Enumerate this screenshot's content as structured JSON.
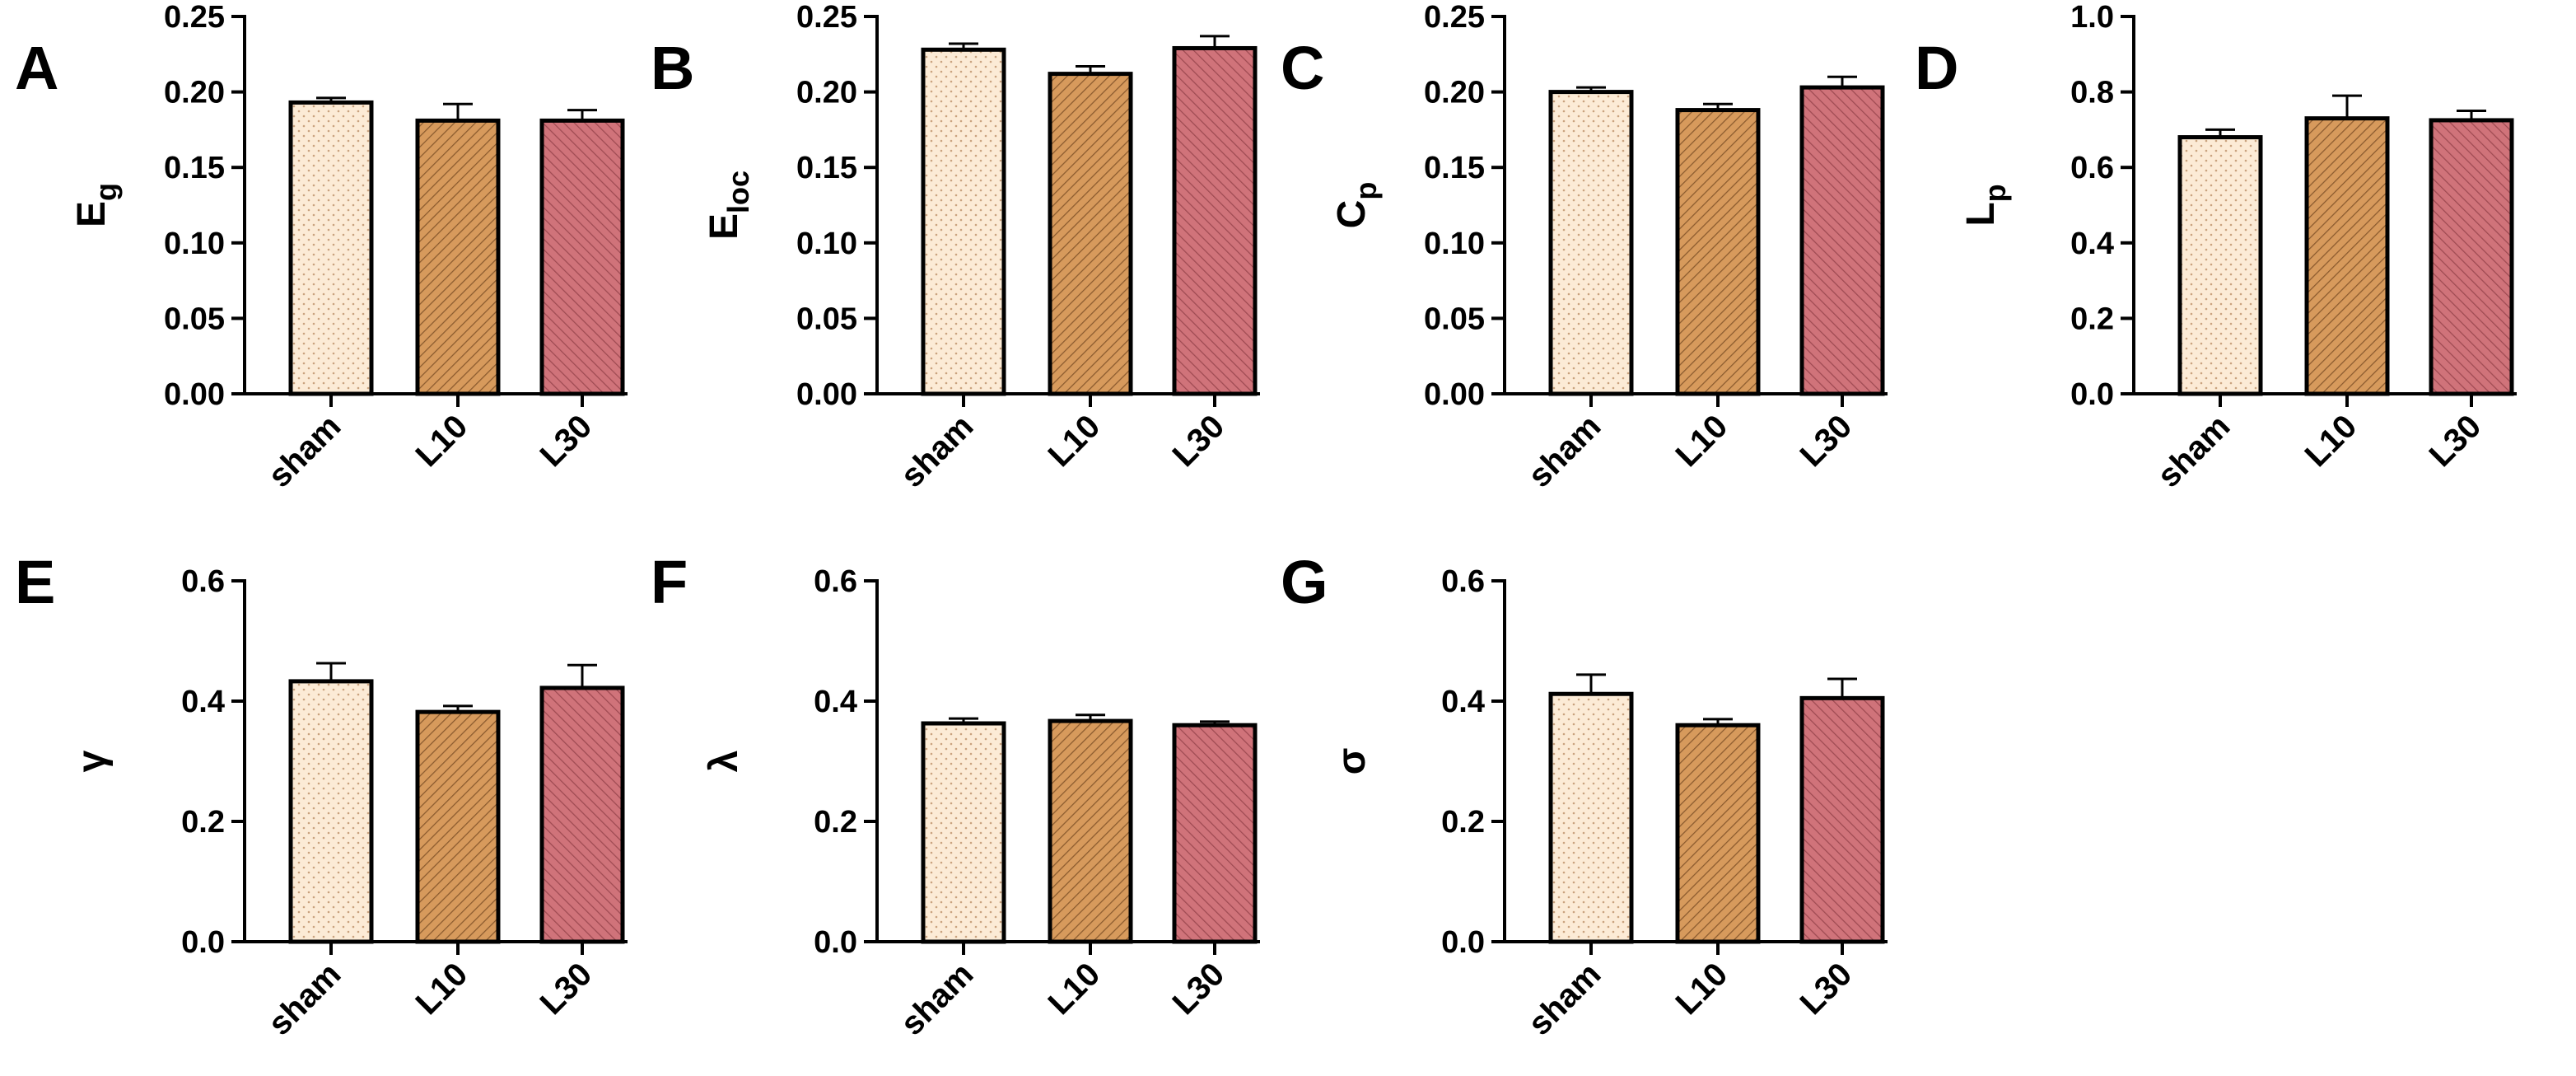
{
  "colors": {
    "sham": "#FCEBD6",
    "L10": "#D79A5C",
    "L30": "#D0737A",
    "axis": "#000000"
  },
  "chart_data": [
    {
      "panel": "A",
      "type": "bar",
      "ylabel": "E",
      "ylabel_sub": "g",
      "categories": [
        "sham",
        "L10",
        "L30"
      ],
      "values": [
        0.193,
        0.181,
        0.181
      ],
      "errors": [
        0.003,
        0.011,
        0.007
      ],
      "ylim": [
        0,
        0.25
      ],
      "yticks": [
        "0.00",
        "0.05",
        "0.10",
        "0.15",
        "0.20",
        "0.25"
      ],
      "grid": false
    },
    {
      "panel": "B",
      "type": "bar",
      "ylabel": "E",
      "ylabel_sub": "loc",
      "categories": [
        "sham",
        "L10",
        "L30"
      ],
      "values": [
        0.228,
        0.212,
        0.229
      ],
      "errors": [
        0.004,
        0.005,
        0.008
      ],
      "ylim": [
        0,
        0.25
      ],
      "yticks": [
        "0.00",
        "0.05",
        "0.10",
        "0.15",
        "0.20",
        "0.25"
      ],
      "grid": false
    },
    {
      "panel": "C",
      "type": "bar",
      "ylabel": "C",
      "ylabel_sub": "p",
      "categories": [
        "sham",
        "L10",
        "L30"
      ],
      "values": [
        0.2,
        0.188,
        0.203
      ],
      "errors": [
        0.003,
        0.004,
        0.007
      ],
      "ylim": [
        0,
        0.25
      ],
      "yticks": [
        "0.00",
        "0.05",
        "0.10",
        "0.15",
        "0.20",
        "0.25"
      ],
      "grid": false
    },
    {
      "panel": "D",
      "type": "bar",
      "ylabel": "L",
      "ylabel_sub": "p",
      "categories": [
        "sham",
        "L10",
        "L30"
      ],
      "values": [
        0.68,
        0.73,
        0.725
      ],
      "errors": [
        0.02,
        0.06,
        0.025
      ],
      "ylim": [
        0,
        1.0
      ],
      "yticks": [
        "0.0",
        "0.2",
        "0.4",
        "0.6",
        "0.8",
        "1.0"
      ],
      "grid": false
    },
    {
      "panel": "E",
      "type": "bar",
      "ylabel": "γ",
      "ylabel_sub": "",
      "categories": [
        "sham",
        "L10",
        "L30"
      ],
      "values": [
        0.433,
        0.382,
        0.422
      ],
      "errors": [
        0.03,
        0.01,
        0.038
      ],
      "ylim": [
        0,
        0.6
      ],
      "yticks": [
        "0.0",
        "0.2",
        "0.4",
        "0.6"
      ],
      "grid": false
    },
    {
      "panel": "F",
      "type": "bar",
      "ylabel": "λ",
      "ylabel_sub": "",
      "categories": [
        "sham",
        "L10",
        "L30"
      ],
      "values": [
        0.363,
        0.367,
        0.36
      ],
      "errors": [
        0.008,
        0.01,
        0.006
      ],
      "ylim": [
        0,
        0.6
      ],
      "yticks": [
        "0.0",
        "0.2",
        "0.4",
        "0.6"
      ],
      "grid": false
    },
    {
      "panel": "G",
      "type": "bar",
      "ylabel": "σ",
      "ylabel_sub": "",
      "categories": [
        "sham",
        "L10",
        "L30"
      ],
      "values": [
        0.412,
        0.36,
        0.405
      ],
      "errors": [
        0.032,
        0.01,
        0.032
      ],
      "ylim": [
        0,
        0.6
      ],
      "yticks": [
        "0.0",
        "0.2",
        "0.4",
        "0.6"
      ],
      "grid": false
    }
  ]
}
